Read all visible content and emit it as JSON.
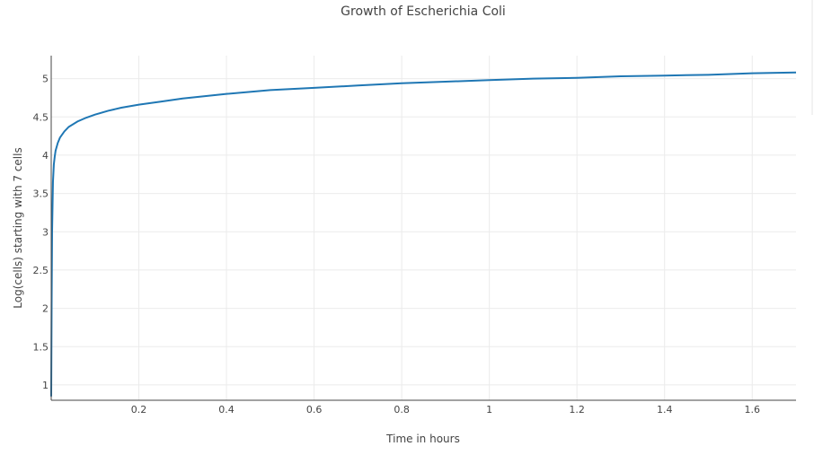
{
  "chart_data": {
    "type": "line",
    "title": "Growth of Escherichia Coli",
    "xlabel": "Time in hours",
    "ylabel": "Log(cells) starting with 7 cells",
    "xlim": [
      0,
      1.7
    ],
    "ylim": [
      0.8,
      5.3
    ],
    "x_ticks": [
      0.2,
      0.4,
      0.6,
      0.8,
      1,
      1.2,
      1.4,
      1.6
    ],
    "x_tick_labels": [
      "0.2",
      "0.4",
      "0.6",
      "0.8",
      "1",
      "1.2",
      "1.4",
      "1.6"
    ],
    "y_ticks": [
      1,
      1.5,
      2,
      2.5,
      3,
      3.5,
      4,
      4.5,
      5
    ],
    "y_tick_labels": [
      "1",
      "1.5",
      "2",
      "2.5",
      "3",
      "3.5",
      "4",
      "4.5",
      "5"
    ],
    "grid": true,
    "series": [
      {
        "color": "#1f77b4",
        "x": [
          0,
          0.001,
          0.002,
          0.004,
          0.006,
          0.008,
          0.01,
          0.015,
          0.02,
          0.03,
          0.04,
          0.06,
          0.08,
          0.1,
          0.13,
          0.16,
          0.2,
          0.25,
          0.3,
          0.4,
          0.5,
          0.6,
          0.7,
          0.8,
          0.9,
          1.0,
          1.1,
          1.2,
          1.3,
          1.4,
          1.5,
          1.6,
          1.7
        ],
        "y": [
          0.85,
          2.1,
          3.0,
          3.65,
          3.88,
          3.98,
          4.06,
          4.16,
          4.23,
          4.31,
          4.37,
          4.44,
          4.49,
          4.53,
          4.58,
          4.62,
          4.66,
          4.7,
          4.74,
          4.8,
          4.85,
          4.88,
          4.91,
          4.94,
          4.96,
          4.98,
          5.0,
          5.01,
          5.03,
          5.04,
          5.05,
          5.07,
          5.08
        ]
      }
    ]
  }
}
